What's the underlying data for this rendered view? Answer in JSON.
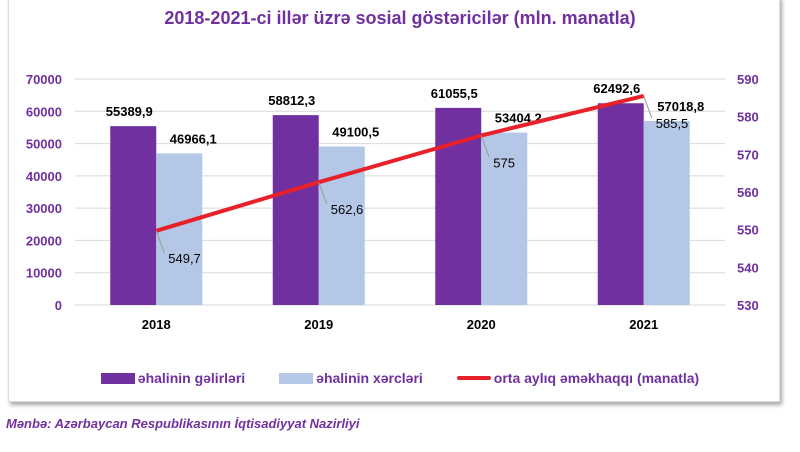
{
  "chart_data": {
    "type": "bar+line",
    "title": "2018-2021-ci illər üzrə sosial göstəricilər (mln. manatla)",
    "categories": [
      "2018",
      "2019",
      "2020",
      "2021"
    ],
    "series": [
      {
        "name": "əhalinin gəlirləri",
        "type": "bar",
        "axis": "left",
        "color": "#7030a0",
        "values": [
          55389.9,
          58812.3,
          61055.5,
          62492.6
        ],
        "labels": [
          "55389,9",
          "58812,3",
          "61055,5",
          "62492,6"
        ]
      },
      {
        "name": "əhalinin xərcləri",
        "type": "bar",
        "axis": "left",
        "color": "#b4c7e7",
        "values": [
          46966.1,
          49100.5,
          53404.2,
          57018.8
        ],
        "labels": [
          "46966,1",
          "49100,5",
          "53404,2",
          "57018,8"
        ]
      },
      {
        "name": "orta aylıq əməkhaqqı (manatla)",
        "type": "line",
        "axis": "right",
        "color": "#e8202a",
        "values": [
          549.7,
          562.6,
          575,
          585.5
        ],
        "labels": [
          "549,7",
          "562,6",
          "575",
          "585,5"
        ]
      }
    ],
    "left_axis": {
      "ylim": [
        0,
        70000
      ],
      "ticks": [
        "0",
        "10000",
        "20000",
        "30000",
        "40000",
        "50000",
        "60000",
        "70000"
      ]
    },
    "right_axis": {
      "ylim": [
        530,
        590
      ],
      "ticks": [
        "530",
        "540",
        "550",
        "560",
        "570",
        "580",
        "590"
      ]
    },
    "grid": true,
    "legend_position": "bottom"
  },
  "source": "Mənbə: Azərbaycan Respublikasının İqtisadiyyat Nazirliyi"
}
